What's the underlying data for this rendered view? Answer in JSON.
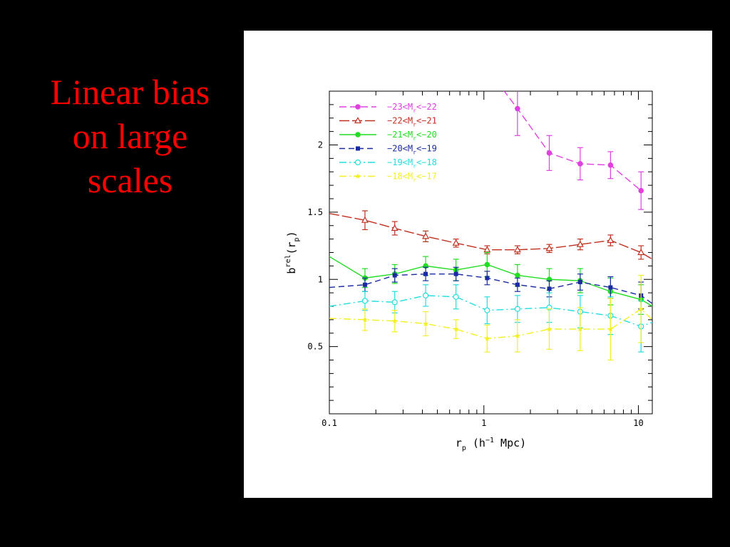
{
  "slide": {
    "title_lines": [
      "Linear bias",
      "on large",
      "scales"
    ],
    "title_color": "#ff0000",
    "background": "#000000"
  },
  "chart_data": {
    "type": "line",
    "xscale": "log",
    "xlim": [
      0.1,
      12.3
    ],
    "ylim": [
      0,
      2.4
    ],
    "xticks": [
      0.1,
      1,
      10
    ],
    "xtick_labels": [
      "0.1",
      "1",
      "10"
    ],
    "yticks": [
      0.5,
      1,
      1.5,
      2
    ],
    "ytick_labels": [
      "0.5",
      "1",
      "1.5",
      "2"
    ],
    "xlabel": {
      "base": "r",
      "sub": "p",
      "rest": " (h",
      "sup": "−1",
      "end": " Mpc)"
    },
    "ylabel": {
      "base": "b",
      "sup": "rel",
      "rest": "(r",
      "sub": "p",
      "end": ")"
    },
    "legend_position": "top-left",
    "grid": false,
    "series": [
      {
        "name": "−23<M_r<−22",
        "legend": {
          "pre": "−23<M",
          "sub": "r",
          "post": "<−22"
        },
        "color": "#e040e0",
        "dash": "10,5",
        "marker": "filled-circle",
        "x": [
          1.65,
          2.65,
          4.2,
          6.6,
          10.4
        ],
        "y": [
          2.27,
          1.94,
          1.86,
          1.85,
          1.66
        ],
        "err": [
          0.2,
          0.13,
          0.12,
          0.1,
          0.14
        ],
        "extend_left": [
          [
            1.0,
            2.6
          ]
        ]
      },
      {
        "name": "−22<M_r<−21",
        "legend": {
          "pre": "−22<M",
          "sub": "r",
          "post": "<−21"
        },
        "color": "#c03020",
        "dash": "14,4",
        "marker": "open-triangle",
        "x": [
          0.17,
          0.265,
          0.42,
          0.66,
          1.05,
          1.65,
          2.65,
          4.2,
          6.6,
          10.4
        ],
        "y": [
          1.44,
          1.38,
          1.32,
          1.27,
          1.22,
          1.22,
          1.23,
          1.26,
          1.29,
          1.2
        ],
        "err": [
          0.07,
          0.05,
          0.04,
          0.03,
          0.03,
          0.03,
          0.03,
          0.04,
          0.04,
          0.05
        ],
        "extend": [
          [
            0.1,
            1.49
          ],
          [
            12.3,
            1.15
          ]
        ]
      },
      {
        "name": "−21<M_r<−20",
        "legend": {
          "pre": "−21<M",
          "sub": "r",
          "post": "<−20"
        },
        "color": "#22dd22",
        "dash": "",
        "marker": "filled-circle",
        "x": [
          0.17,
          0.265,
          0.42,
          0.66,
          1.05,
          1.65,
          2.65,
          4.2,
          6.6,
          10.4
        ],
        "y": [
          1.01,
          1.04,
          1.1,
          1.07,
          1.11,
          1.03,
          1.0,
          0.99,
          0.91,
          0.85
        ],
        "err": [
          0.07,
          0.07,
          0.07,
          0.08,
          0.09,
          0.08,
          0.08,
          0.09,
          0.1,
          0.11
        ],
        "extend": [
          [
            0.1,
            1.17
          ],
          [
            12.3,
            0.8
          ]
        ]
      },
      {
        "name": "−20<M_r<−19",
        "legend": {
          "pre": "−20<M",
          "sub": "r",
          "post": "<−19"
        },
        "color": "#1a2aa0",
        "dash": "8,5",
        "marker": "filled-square",
        "x": [
          0.17,
          0.265,
          0.42,
          0.66,
          1.05,
          1.65,
          2.65,
          4.2,
          6.6,
          10.4
        ],
        "y": [
          0.96,
          1.03,
          1.04,
          1.04,
          1.01,
          0.96,
          0.93,
          0.98,
          0.94,
          0.88
        ],
        "err": [
          0.05,
          0.05,
          0.05,
          0.05,
          0.05,
          0.05,
          0.06,
          0.06,
          0.08,
          0.1
        ],
        "extend": [
          [
            0.1,
            0.94
          ],
          [
            12.3,
            0.82
          ]
        ]
      },
      {
        "name": "−19<M_r<−18",
        "legend": {
          "pre": "−19<M",
          "sub": "r",
          "post": "<−18"
        },
        "color": "#22dddd",
        "dash": "10,4,2,4",
        "marker": "open-circle",
        "x": [
          0.17,
          0.265,
          0.42,
          0.66,
          1.05,
          1.65,
          2.65,
          4.2,
          6.6,
          10.4
        ],
        "y": [
          0.84,
          0.83,
          0.88,
          0.87,
          0.77,
          0.78,
          0.79,
          0.76,
          0.73,
          0.65
        ],
        "err": [
          0.07,
          0.08,
          0.08,
          0.09,
          0.1,
          0.1,
          0.11,
          0.12,
          0.14,
          0.19
        ],
        "extend": [
          [
            0.1,
            0.8
          ],
          [
            12.3,
            0.68
          ]
        ]
      },
      {
        "name": "−18<M_r<−17",
        "legend": {
          "pre": "−18<M",
          "sub": "r",
          "post": "<−17"
        },
        "color": "#f2f020",
        "dash": "10,4,2,4",
        "marker": "filled-star",
        "x": [
          0.17,
          0.265,
          0.42,
          0.66,
          1.05,
          1.65,
          2.65,
          4.2,
          6.6,
          10.4
        ],
        "y": [
          0.7,
          0.69,
          0.67,
          0.63,
          0.56,
          0.58,
          0.63,
          0.63,
          0.63,
          0.78
        ],
        "err": [
          0.08,
          0.08,
          0.09,
          0.07,
          0.1,
          0.12,
          0.15,
          0.16,
          0.23,
          0.25
        ],
        "extend": [
          [
            0.1,
            0.71
          ],
          [
            12.3,
            0.7
          ]
        ]
      }
    ]
  }
}
